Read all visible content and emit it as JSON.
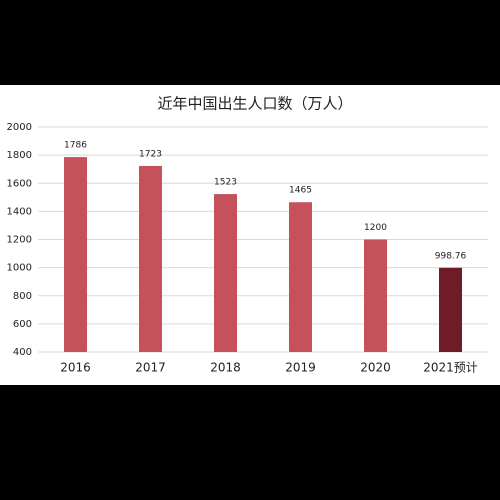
{
  "chart_data": {
    "type": "bar",
    "title": "近年中国出生人口数（万人）",
    "categories": [
      "2016",
      "2017",
      "2018",
      "2019",
      "2020",
      "2021预计"
    ],
    "values": [
      1786,
      1723,
      1523,
      1465,
      1200,
      998.76
    ],
    "colors": [
      "#c5525a",
      "#c5525a",
      "#c5525a",
      "#c5525a",
      "#c5525a",
      "#6e1c27"
    ],
    "ylim": [
      400,
      2000
    ],
    "yticks": [
      400,
      600,
      800,
      1000,
      1200,
      1400,
      1600,
      1800,
      2000
    ],
    "grid": true
  }
}
